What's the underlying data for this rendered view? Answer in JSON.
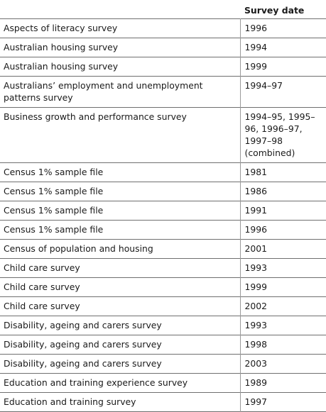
{
  "table": {
    "header": {
      "name": "",
      "date": "Survey date"
    },
    "rows": [
      {
        "name": "Aspects of literacy survey",
        "date": "1996"
      },
      {
        "name": "Australian housing survey",
        "date": "1994"
      },
      {
        "name": "Australian housing survey",
        "date": "1999"
      },
      {
        "name": "Australians’ employment and unemployment patterns survey",
        "date": "1994–97"
      },
      {
        "name": "Business growth and performance survey",
        "date": "1994–95, 1995–96, 1996–97, 1997–98 (combined)"
      },
      {
        "name": "Census 1% sample file",
        "date": "1981"
      },
      {
        "name": "Census 1% sample file",
        "date": "1986"
      },
      {
        "name": "Census 1% sample file",
        "date": "1991"
      },
      {
        "name": "Census 1% sample file",
        "date": "1996"
      },
      {
        "name": "Census of population and housing",
        "date": "2001"
      },
      {
        "name": "Child care survey",
        "date": "1993"
      },
      {
        "name": "Child care survey",
        "date": "1999"
      },
      {
        "name": "Child care survey",
        "date": "2002"
      },
      {
        "name": "Disability, ageing and carers survey",
        "date": "1993"
      },
      {
        "name": "Disability, ageing and carers survey",
        "date": "1998"
      },
      {
        "name": "Disability, ageing and carers survey",
        "date": "2003"
      },
      {
        "name": "Education and training experience survey",
        "date": "1989"
      },
      {
        "name": "Education and training survey",
        "date": "1997"
      }
    ]
  }
}
